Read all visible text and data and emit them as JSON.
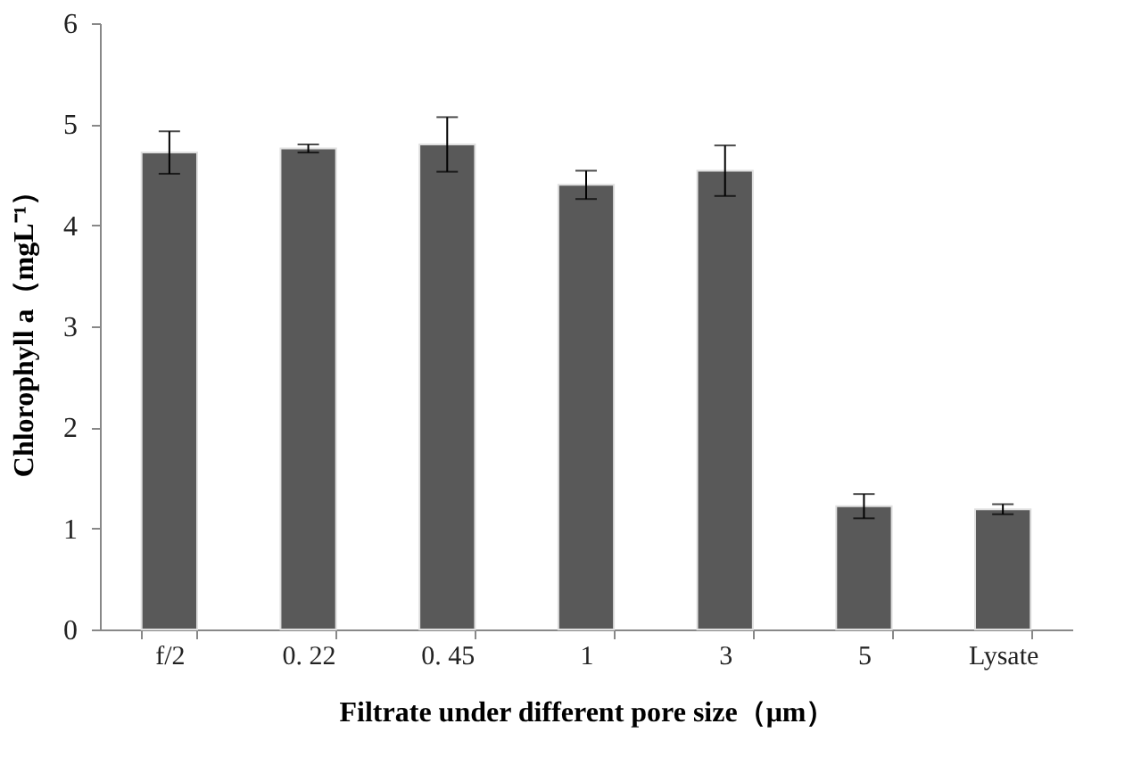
{
  "chart_data": {
    "type": "bar",
    "xlabel": "Filtrate under different pore size（μm）",
    "ylabel": "Chlorophyll a（mgL⁻¹）",
    "categories": [
      "f/2",
      "0. 22",
      "0. 45",
      "1",
      "3",
      "5",
      "Lysate"
    ],
    "values": [
      4.72,
      4.76,
      4.8,
      4.4,
      4.54,
      1.22,
      1.19
    ],
    "errors": [
      0.21,
      0.04,
      0.27,
      0.14,
      0.25,
      0.12,
      0.05
    ],
    "color": "#595959",
    "ylim": [
      0,
      6
    ],
    "yticks": [
      0,
      1,
      2,
      3,
      4,
      5,
      6
    ],
    "grid": false
  }
}
